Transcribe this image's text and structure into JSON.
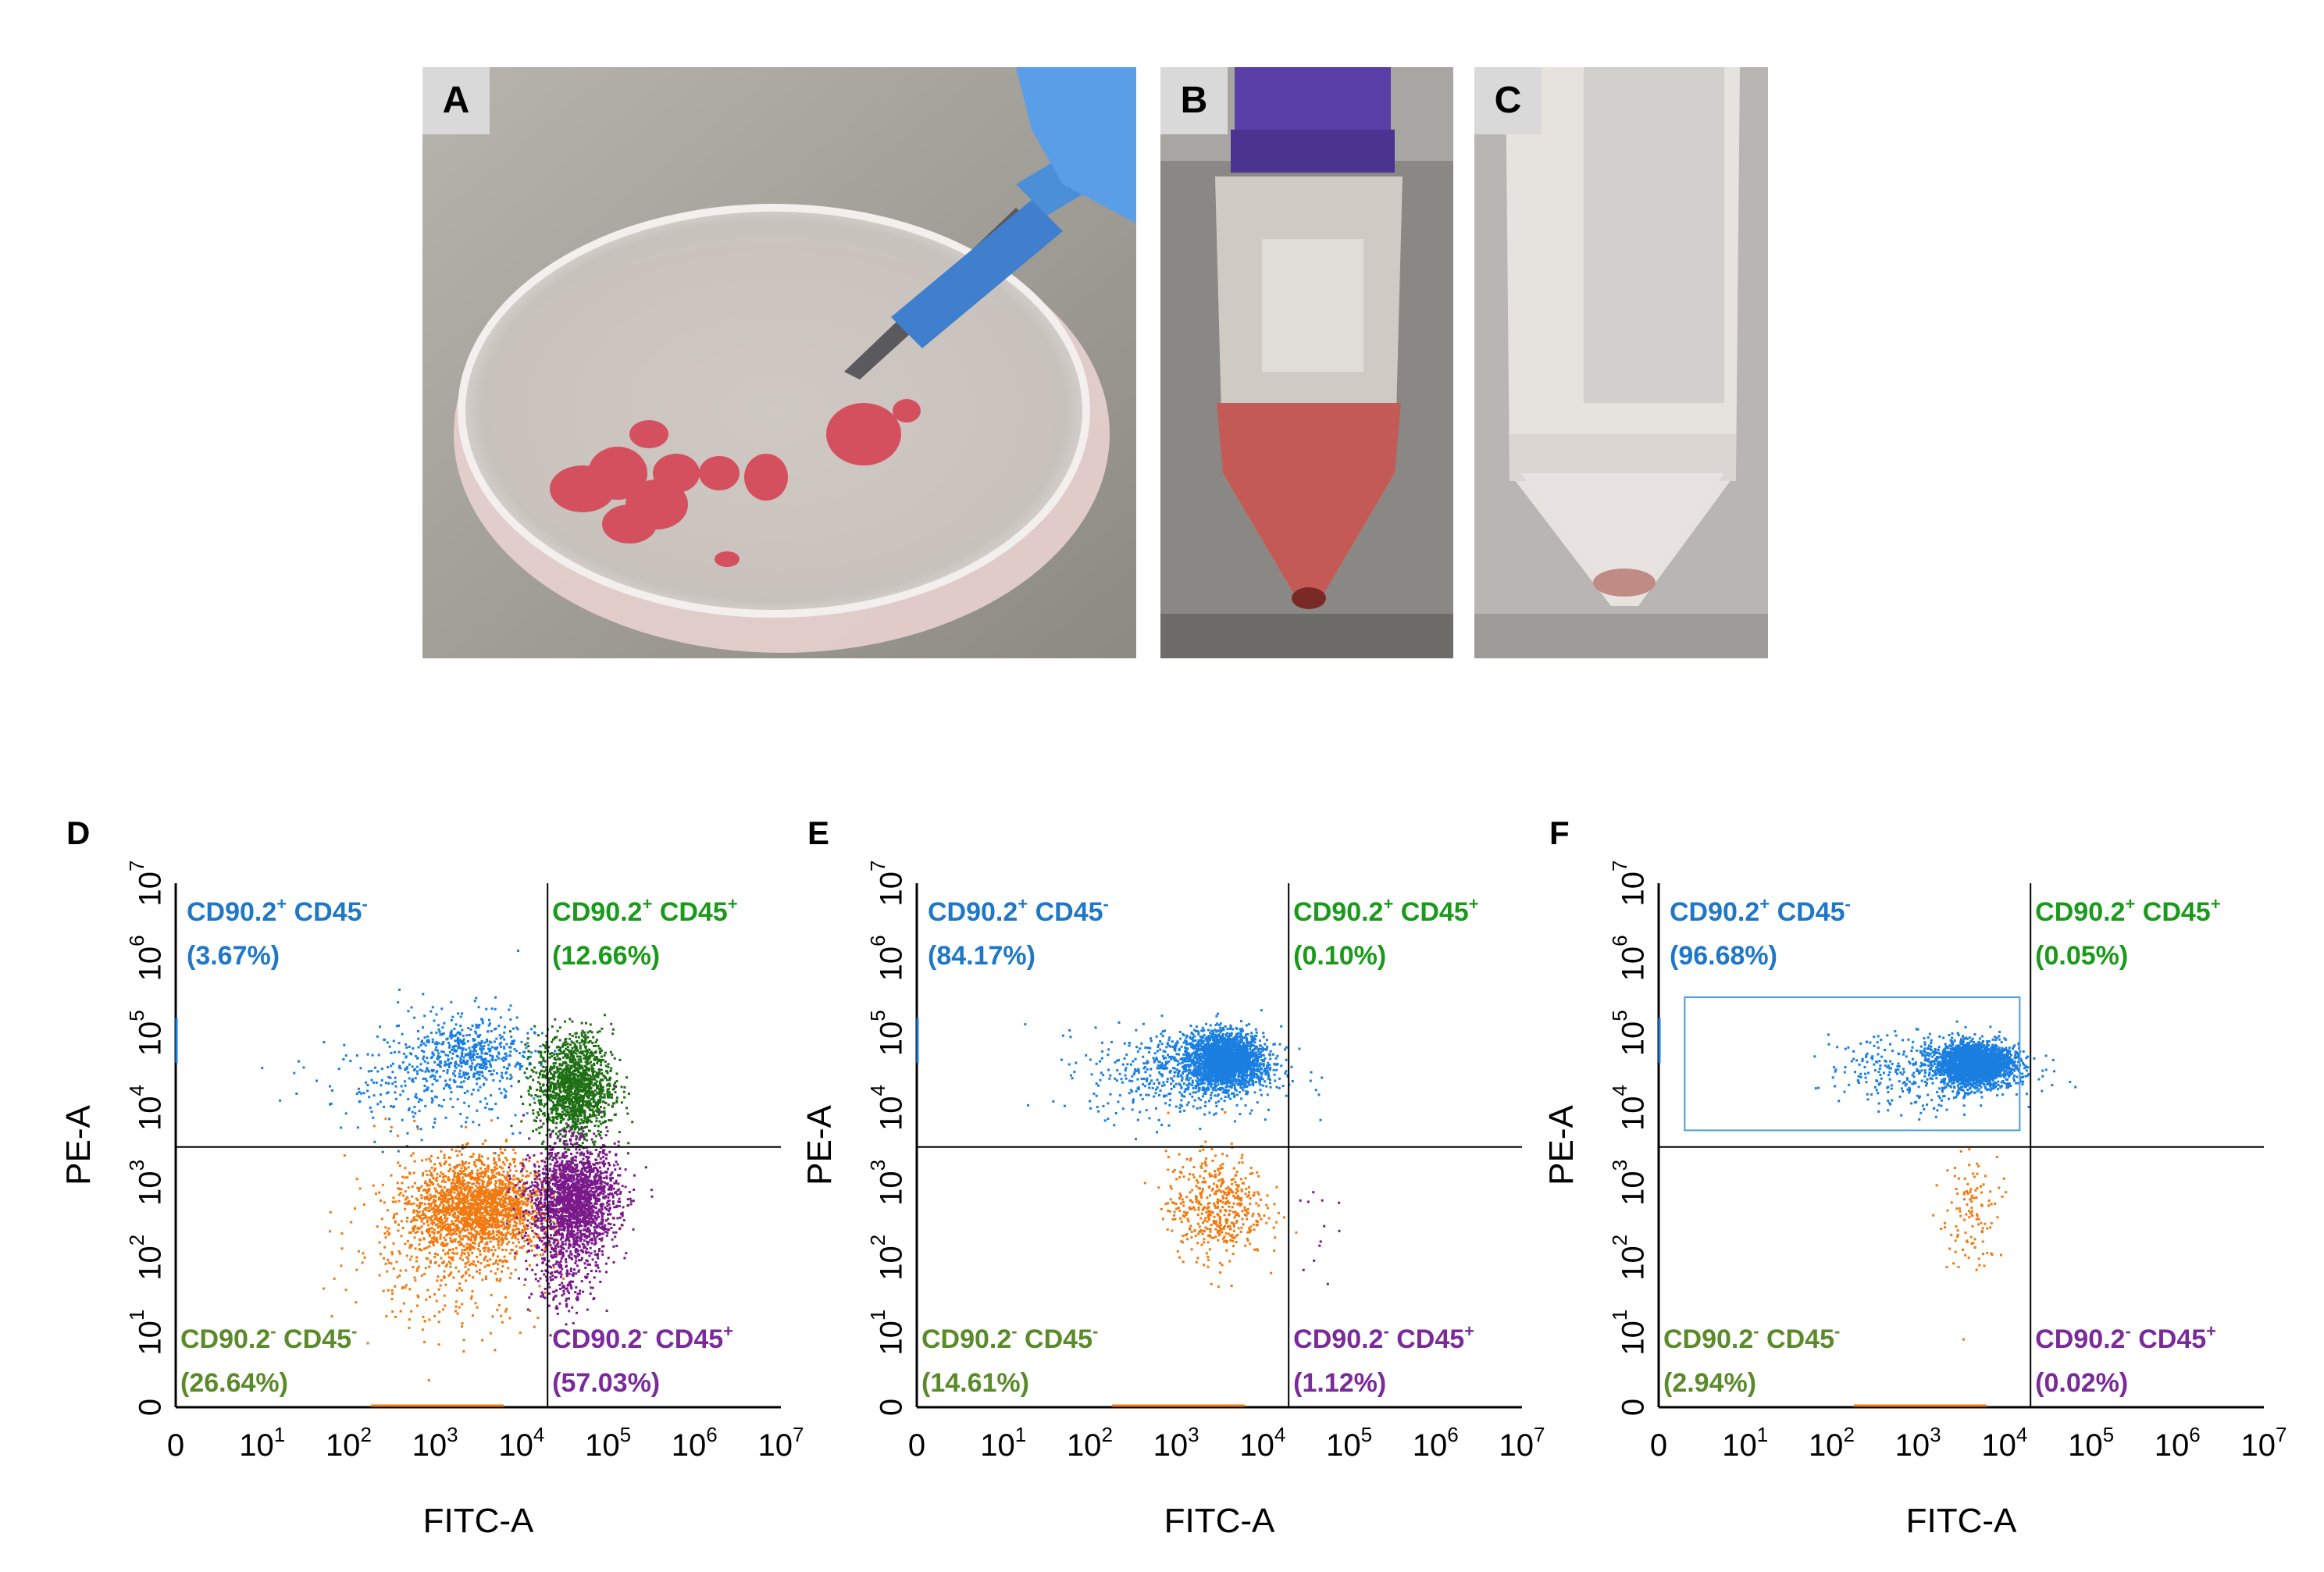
{
  "photos": [
    {
      "label": "A"
    },
    {
      "label": "B"
    },
    {
      "label": "C"
    }
  ],
  "chart_data": [
    {
      "type": "scatter",
      "panel_label": "D",
      "xlabel": "FITC-A",
      "ylabel": "PE-A",
      "x_scale": "log",
      "y_scale": "log",
      "x_ticks": [
        "0",
        "10^1",
        "10^2",
        "10^3",
        "10^4",
        "10^5",
        "10^6",
        "10^7"
      ],
      "y_ticks": [
        "0",
        "10^1",
        "10^2",
        "10^3",
        "10^4",
        "10^5",
        "10^6",
        "10^7"
      ],
      "gate": {
        "x": 20000,
        "y": 3000
      },
      "quadrants": [
        {
          "name": "CD90.2",
          "name_sup": "+",
          "name2": "CD45",
          "name2_sup": "-",
          "value": "(3.67%)",
          "color": "#1f77c8",
          "position": "top-left"
        },
        {
          "name": "CD90.2",
          "name_sup": "+",
          "name2": "CD45",
          "name2_sup": "+",
          "value": "(12.66%)",
          "color": "#1a9a1a",
          "position": "top-right"
        },
        {
          "name": "CD90.2",
          "name_sup": "-",
          "name2": "CD45",
          "name2_sup": "-",
          "value": "(26.64%)",
          "color": "#5a8a2a",
          "position": "bottom-left"
        },
        {
          "name": "CD90.2",
          "name_sup": "-",
          "name2": "CD45",
          "name2_sup": "+",
          "value": "(57.03%)",
          "color": "#7a2a9a",
          "position": "bottom-right"
        }
      ],
      "clusters": [
        {
          "color": "#1a7fe0",
          "cx": 3.4,
          "cy": 4.7,
          "sx": 0.35,
          "sy": 0.28,
          "n": 500
        },
        {
          "color": "#1a7fe0",
          "cx": 2.8,
          "cy": 4.4,
          "sx": 0.6,
          "sy": 0.4,
          "n": 250
        },
        {
          "color": "#1e6e14",
          "cx": 4.6,
          "cy": 4.3,
          "sx": 0.22,
          "sy": 0.35,
          "n": 1400
        },
        {
          "color": "#f07a10",
          "cx": 3.5,
          "cy": 2.7,
          "sx": 0.38,
          "sy": 0.32,
          "n": 1800
        },
        {
          "color": "#f07a10",
          "cx": 3.1,
          "cy": 2.2,
          "sx": 0.55,
          "sy": 0.55,
          "n": 500
        },
        {
          "color": "#7a1a8a",
          "cx": 4.6,
          "cy": 2.8,
          "sx": 0.25,
          "sy": 0.35,
          "n": 1800
        },
        {
          "color": "#7a1a8a",
          "cx": 4.5,
          "cy": 2.0,
          "sx": 0.2,
          "sy": 0.4,
          "n": 300
        }
      ]
    },
    {
      "type": "scatter",
      "panel_label": "E",
      "xlabel": "FITC-A",
      "ylabel": "PE-A",
      "x_scale": "log",
      "y_scale": "log",
      "x_ticks": [
        "0",
        "10^1",
        "10^2",
        "10^3",
        "10^4",
        "10^5",
        "10^6",
        "10^7"
      ],
      "y_ticks": [
        "0",
        "10^1",
        "10^2",
        "10^3",
        "10^4",
        "10^5",
        "10^6",
        "10^7"
      ],
      "gate": {
        "x": 20000,
        "y": 3000
      },
      "quadrants": [
        {
          "name": "CD90.2",
          "name_sup": "+",
          "name2": "CD45",
          "name2_sup": "-",
          "value": "(84.17%)",
          "color": "#1f77c8",
          "position": "top-left"
        },
        {
          "name": "CD90.2",
          "name_sup": "+",
          "name2": "CD45",
          "name2_sup": "+",
          "value": "(0.10%)",
          "color": "#1a9a1a",
          "position": "top-right"
        },
        {
          "name": "CD90.2",
          "name_sup": "-",
          "name2": "CD45",
          "name2_sup": "-",
          "value": "(14.61%)",
          "color": "#5a8a2a",
          "position": "bottom-left"
        },
        {
          "name": "CD90.2",
          "name_sup": "-",
          "name2": "CD45",
          "name2_sup": "+",
          "value": "(1.12%)",
          "color": "#7a2a9a",
          "position": "bottom-right"
        }
      ],
      "clusters": [
        {
          "color": "#1a7fe0",
          "cx": 3.55,
          "cy": 4.65,
          "sx": 0.22,
          "sy": 0.18,
          "n": 2200
        },
        {
          "color": "#1a7fe0",
          "cx": 3.1,
          "cy": 4.5,
          "sx": 0.55,
          "sy": 0.3,
          "n": 600
        },
        {
          "color": "#f07a10",
          "cx": 3.45,
          "cy": 2.7,
          "sx": 0.28,
          "sy": 0.35,
          "n": 500
        },
        {
          "color": "#7a1a8a",
          "cx": 4.5,
          "cy": 2.4,
          "sx": 0.15,
          "sy": 0.4,
          "n": 12
        }
      ]
    },
    {
      "type": "scatter",
      "panel_label": "F",
      "xlabel": "FITC-A",
      "ylabel": "PE-A",
      "x_scale": "log",
      "y_scale": "log",
      "x_ticks": [
        "0",
        "10^1",
        "10^2",
        "10^3",
        "10^4",
        "10^5",
        "10^6",
        "10^7"
      ],
      "y_ticks": [
        "0",
        "10^1",
        "10^2",
        "10^3",
        "10^4",
        "10^5",
        "10^6",
        "10^7"
      ],
      "gate": {
        "x": 20000,
        "y": 3000
      },
      "sort_gate": {
        "x": [
          2,
          15000
        ],
        "y": [
          5000,
          300000
        ]
      },
      "quadrants": [
        {
          "name": "CD90.2",
          "name_sup": "+",
          "name2": "CD45",
          "name2_sup": "-",
          "value": "(96.68%)",
          "color": "#1f77c8",
          "position": "top-left"
        },
        {
          "name": "CD90.2",
          "name_sup": "+",
          "name2": "CD45",
          "name2_sup": "+",
          "value": "(0.05%)",
          "color": "#1a9a1a",
          "position": "top-right"
        },
        {
          "name": "CD90.2",
          "name_sup": "-",
          "name2": "CD45",
          "name2_sup": "-",
          "value": "(2.94%)",
          "color": "#5a8a2a",
          "position": "bottom-left"
        },
        {
          "name": "CD90.2",
          "name_sup": "-",
          "name2": "CD45",
          "name2_sup": "+",
          "value": "(0.02%)",
          "color": "#7a2a9a",
          "position": "bottom-right"
        }
      ],
      "clusters": [
        {
          "color": "#1a7fe0",
          "cx": 3.65,
          "cy": 4.6,
          "sx": 0.2,
          "sy": 0.13,
          "n": 2600
        },
        {
          "color": "#1a7fe0",
          "cx": 3.2,
          "cy": 4.5,
          "sx": 0.55,
          "sy": 0.25,
          "n": 500
        },
        {
          "color": "#f07a10",
          "cx": 3.6,
          "cy": 2.6,
          "sx": 0.15,
          "sy": 0.35,
          "n": 120
        }
      ]
    }
  ]
}
